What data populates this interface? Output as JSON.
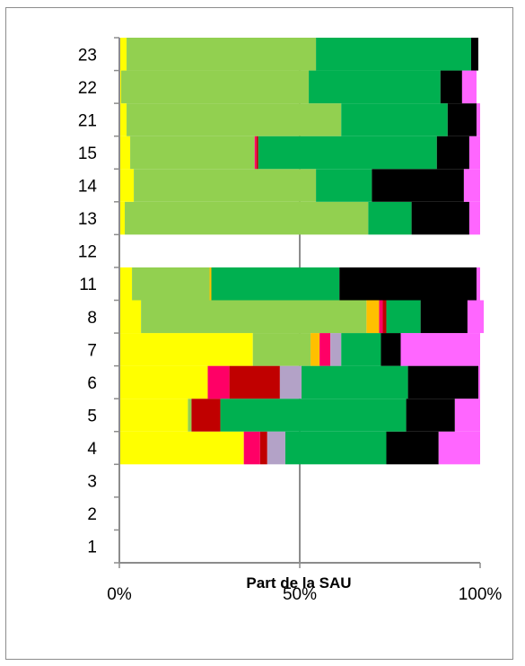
{
  "chart_data": {
    "type": "bar",
    "orientation": "horizontal",
    "stacked": "percent",
    "xlabel": "Part de la SAU",
    "ylabel": "",
    "xlim": [
      0,
      100
    ],
    "x_ticks": [
      "0%",
      "50%",
      "100%"
    ],
    "x_tick_values": [
      0,
      50,
      100
    ],
    "vertical_gridlines": [
      50
    ],
    "legend": "none",
    "categories": [
      "1",
      "2",
      "3",
      "4",
      "5",
      "6",
      "7",
      "8",
      "11",
      "12",
      "13",
      "14",
      "15",
      "21",
      "22",
      "23"
    ],
    "series": [
      {
        "color": "#ffff00",
        "values": [
          0,
          0,
          0,
          34.5,
          19,
          24.5,
          37,
          6,
          3.5,
          0,
          1.5,
          4,
          3,
          2,
          0.5,
          2
        ]
      },
      {
        "color": "#92d050",
        "values": [
          0,
          0,
          0,
          0,
          1,
          0,
          16,
          62.5,
          21.5,
          0,
          67.5,
          50.5,
          34.5,
          59.5,
          52,
          52.5
        ]
      },
      {
        "color": "#ffc000",
        "values": [
          0,
          0,
          0,
          0,
          0,
          0,
          2.5,
          3.5,
          0.5,
          0,
          0,
          0,
          0,
          0,
          0,
          0
        ]
      },
      {
        "color": "#ff0066",
        "values": [
          0,
          0,
          0,
          4.5,
          0,
          6,
          3,
          1,
          0,
          0,
          0,
          0,
          0.5,
          0,
          0,
          0
        ]
      },
      {
        "color": "#c00000",
        "values": [
          0,
          0,
          0,
          2,
          8,
          14,
          0,
          1,
          0,
          0,
          0,
          0,
          0.5,
          0,
          0,
          0
        ]
      },
      {
        "color": "#b3a2c7",
        "values": [
          0,
          0,
          0,
          5,
          0,
          6,
          3,
          0,
          0,
          0,
          0,
          0,
          0,
          0,
          0,
          0
        ]
      },
      {
        "color": "#00b050",
        "values": [
          0,
          0,
          0,
          28,
          51.5,
          29.5,
          11,
          9.5,
          35.5,
          0,
          12,
          15.5,
          49.5,
          29.5,
          36.5,
          43
        ]
      },
      {
        "color": "#000000",
        "values": [
          0,
          0,
          0,
          14.5,
          13.5,
          19.5,
          5.5,
          13,
          38,
          0,
          16,
          25.5,
          9,
          8,
          6,
          2
        ]
      },
      {
        "color": "#ff66ff",
        "values": [
          0,
          0,
          0,
          11.5,
          7,
          0.5,
          22,
          4.5,
          1,
          0,
          3,
          4.5,
          3,
          1,
          4,
          0
        ]
      }
    ]
  }
}
